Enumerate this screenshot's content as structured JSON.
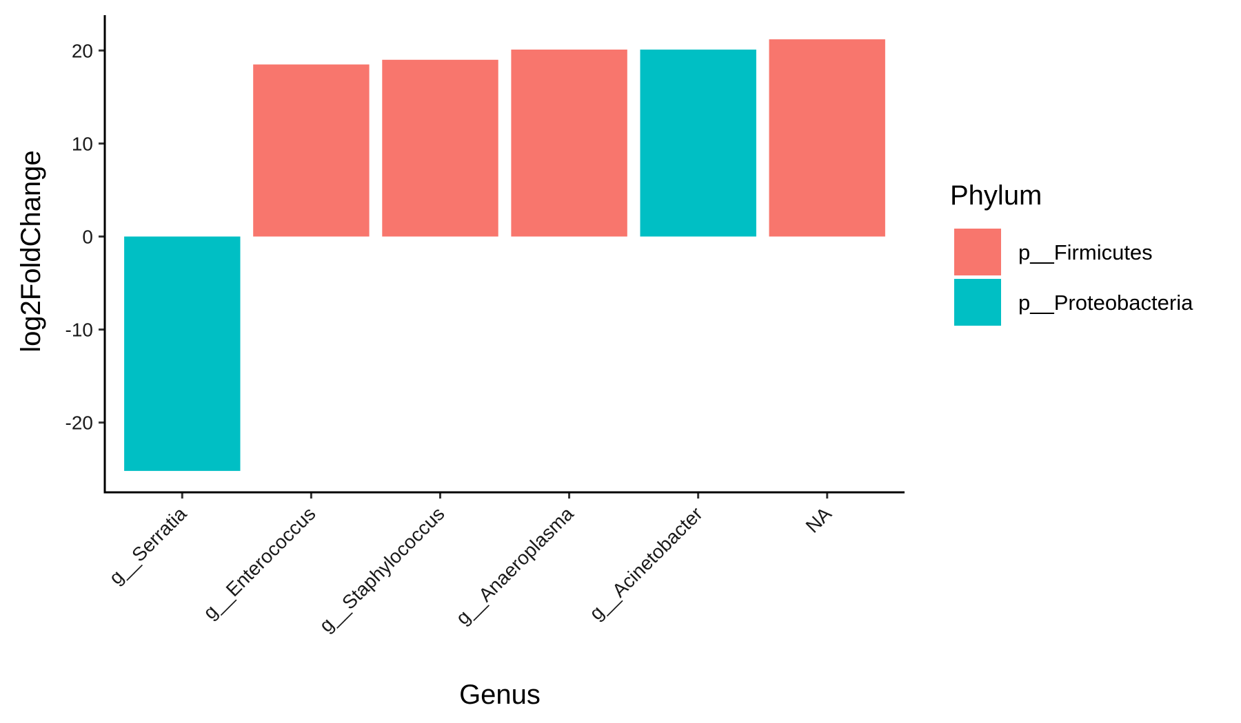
{
  "chart_data": {
    "type": "bar",
    "title": "",
    "xlabel": "Genus",
    "ylabel": "log2FoldChange",
    "categories": [
      "g__Serratia",
      "g__Enterococcus",
      "g__Staphylococcus",
      "g__Anaeroplasma",
      "g__Acinetobacter",
      "NA"
    ],
    "values": [
      -25.2,
      18.5,
      19.0,
      20.1,
      20.1,
      21.2
    ],
    "phylum": [
      "p__Proteobacteria",
      "p__Firmicutes",
      "p__Firmicutes",
      "p__Firmicutes",
      "p__Proteobacteria",
      "p__Firmicutes"
    ],
    "ylim": [
      -27.5,
      23.8
    ],
    "yticks": [
      -20,
      -10,
      0,
      10,
      20
    ],
    "ytick_labels": [
      "-20",
      "-10",
      "0",
      "10",
      "20"
    ],
    "legend": {
      "title": "Phylum",
      "placement": "right",
      "entries": [
        {
          "label": "p__Firmicutes",
          "color": "#F8766D"
        },
        {
          "label": "p__Proteobacteria",
          "color": "#00BFC4"
        }
      ]
    },
    "grid": false,
    "colors": {
      "p__Firmicutes": "#F8766D",
      "p__Proteobacteria": "#00BFC4"
    }
  }
}
